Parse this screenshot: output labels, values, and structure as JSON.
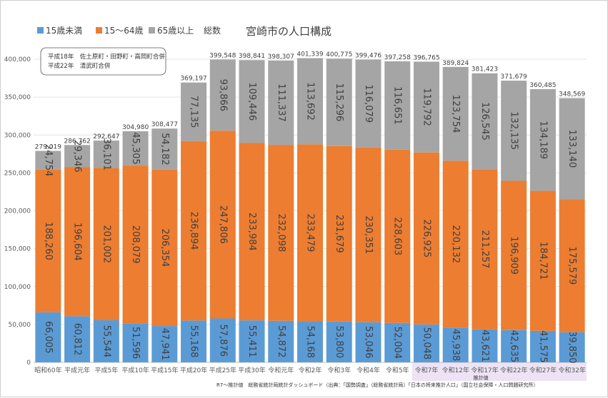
{
  "chart_data": {
    "type": "bar",
    "stacked": true,
    "title": "宮崎市の人口構成",
    "categories": [
      "昭和60年",
      "平成元年",
      "平成5年",
      "平成10年",
      "平成15年",
      "平成20年",
      "平成25年",
      "平成30年",
      "令和元年",
      "令和2年",
      "令和3年",
      "令和4年",
      "令和5年",
      "令和7年",
      "令和12年",
      "令和17年",
      "令和22年",
      "令和27年",
      "令和32年"
    ],
    "series": [
      {
        "name": "15歳未満",
        "color": "#5b9bd5",
        "values": [
          66005,
          60812,
          55544,
          51596,
          47941,
          55168,
          57876,
          55411,
          54872,
          54168,
          53800,
          53046,
          52004,
          50048,
          45938,
          43621,
          42635,
          41575,
          39850
        ]
      },
      {
        "name": "15～64歳",
        "color": "#ed7d31",
        "values": [
          188260,
          196604,
          201002,
          208079,
          206354,
          236894,
          247806,
          233984,
          232098,
          233479,
          231679,
          230351,
          228603,
          226925,
          220132,
          211257,
          196909,
          184721,
          175579
        ]
      },
      {
        "name": "65歳以上",
        "color": "#a5a5a5",
        "values": [
          24754,
          29346,
          36101,
          45305,
          54182,
          77135,
          93866,
          109446,
          111337,
          113692,
          115296,
          116079,
          116651,
          119792,
          123754,
          126545,
          132135,
          134189,
          133140
        ]
      }
    ],
    "series_labels": [
      [
        "66,005",
        "60,812",
        "55,544",
        "51,596",
        "47,941",
        "55,168",
        "57,876",
        "55,411",
        "54,872",
        "54,168",
        "53,800",
        "53,046",
        "52,004",
        "50,048",
        "45,938",
        "43,621",
        "42,635",
        "41,575",
        "39,850"
      ],
      [
        "188,260",
        "196,604",
        "201,002",
        "208,079",
        "206,354",
        "236,894",
        "247,806",
        "233,984",
        "232,098",
        "233,479",
        "231,679",
        "230,351",
        "228,603",
        "226,925",
        "220,132",
        "211,257",
        "196,909",
        "184,721",
        "175,579"
      ],
      [
        "24,754",
        "29,346",
        "36,101",
        "45,305",
        "54,182",
        "77,135",
        "93,866",
        "109,446",
        "111,337",
        "113,692",
        "115,296",
        "116,079",
        "116,651",
        "119,792",
        "123,754",
        "126,545",
        "132,135",
        "134,189",
        "133,140"
      ]
    ],
    "totals": [
      279019,
      286762,
      292647,
      304980,
      308477,
      369197,
      399548,
      398841,
      398307,
      401339,
      400775,
      399476,
      397258,
      396765,
      389824,
      381423,
      371679,
      360485,
      348569
    ],
    "total_labels": [
      "279,019",
      "286,762",
      "292,647",
      "304,980",
      "308,477",
      "369,197",
      "399,548",
      "398,841",
      "398,307",
      "401,339",
      "400,775",
      "399,476",
      "397,258",
      "396,765",
      "389,824",
      "381,423",
      "371,679",
      "360,485",
      "348,569"
    ],
    "total_legend": "総数",
    "highlight_total_index": 9,
    "highlight_color": "#ff0000",
    "total_color": "#ffffff",
    "ylim": [
      0,
      400000
    ],
    "y_ticks": [
      0,
      50000,
      100000,
      150000,
      200000,
      250000,
      300000,
      350000,
      400000
    ],
    "y_tick_labels": [
      "0",
      "50,000",
      "100,000",
      "150,000",
      "200,000",
      "250,000",
      "300,000",
      "350,000",
      "400,000"
    ],
    "estimate_from_index": 13,
    "estimate_label": "推計値",
    "estimate_shade": "#ede3f5",
    "grid": true,
    "legend_position": "top-left"
  },
  "annotation": {
    "lines": [
      "平成18年　佐土原町・田野町・高岡町合併",
      "平成22年　清武町合併"
    ]
  },
  "source": "R7～推計値　総務省統計局統計ダッシュボード（出典：「国勢調査」（総務省統計局）「日本の将来推計人口」（国立社会保障・人口問題研究所）"
}
